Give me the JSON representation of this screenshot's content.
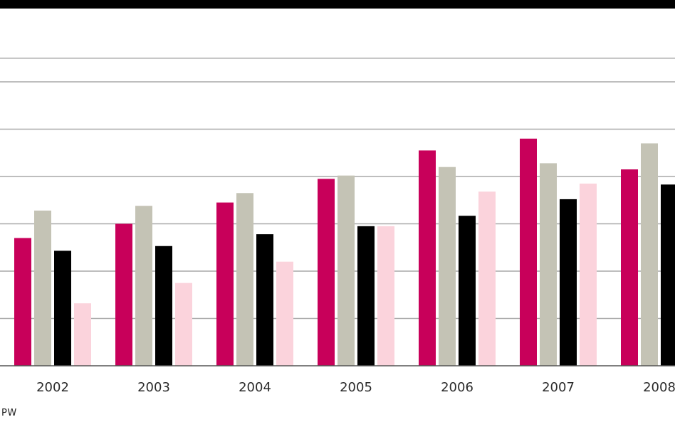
{
  "chart_data": {
    "type": "bar",
    "title": "",
    "xlabel": "",
    "ylabel": "",
    "categories": [
      "2002",
      "2003",
      "2004",
      "2005",
      "2006",
      "2007",
      "2008"
    ],
    "ylim": [
      0,
      7.5
    ],
    "grid": true,
    "gridlines": [
      1,
      2,
      3,
      4,
      5,
      6,
      6.5
    ],
    "series": [
      {
        "color": "#c8005a",
        "values": [
          2.7,
          3.0,
          3.45,
          3.95,
          4.55,
          4.8,
          4.15
        ]
      },
      {
        "color": "#c4c3b5",
        "values": [
          3.28,
          3.38,
          3.65,
          4.02,
          4.2,
          4.28,
          4.7
        ]
      },
      {
        "color": "#000000",
        "values": [
          2.43,
          2.53,
          2.78,
          2.95,
          3.17,
          3.52,
          3.83
        ]
      },
      {
        "color": "#fbd3dc",
        "values": [
          1.32,
          1.75,
          2.2,
          2.95,
          3.68,
          3.85,
          null
        ]
      }
    ]
  },
  "footer": {
    "source": "PW"
  }
}
